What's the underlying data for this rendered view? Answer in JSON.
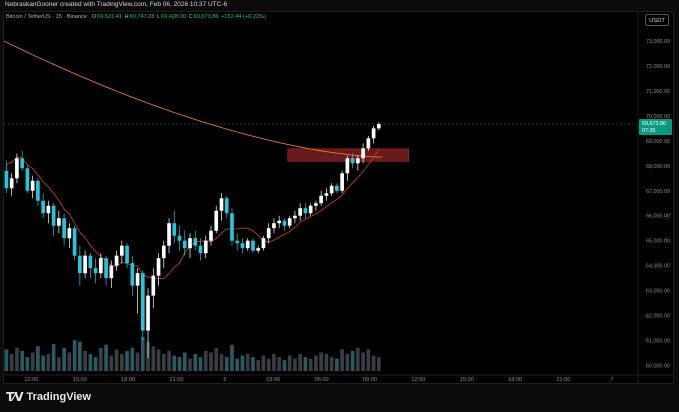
{
  "header": {
    "credit": "NebraskanGooner created with TradingView.com, Feb 06, 2026 10:37 UTC-6"
  },
  "legend": {
    "symbol": "Bitcoin / TetherUS · 15 · Binance",
    "o_label": "O",
    "o": "69,521.41",
    "h_label": "H",
    "h": "69,747.28",
    "l_label": "L",
    "l": "69,428.00",
    "c_label": "C",
    "c": "69,673.86",
    "change": "+152.44 (+0.22%)"
  },
  "quote_currency": "USDT",
  "price_tag": {
    "price": "69,673.86",
    "countdown": "07:35"
  },
  "footer": {
    "brand": "TradingView"
  },
  "colors": {
    "up": "#ffffff",
    "down": "#26c6da",
    "ma_slow": "#e07b2e",
    "ma_fast": "#c0392b",
    "zone": "#7a1f22",
    "background": "#000000"
  },
  "chart_data": {
    "type": "candlestick",
    "ylim": [
      59700,
      73600
    ],
    "y_ticks": [
      "73,000.00",
      "72,000.00",
      "71,000.00",
      "70,000.00",
      "69,000.00",
      "68,000.00",
      "67,000.00",
      "66,000.00",
      "65,000.00",
      "64,000.00",
      "63,000.00",
      "62,000.00",
      "61,000.00",
      "60,000.00"
    ],
    "y_tick_values": [
      73000,
      72000,
      71000,
      70000,
      69000,
      68000,
      67000,
      66000,
      65000,
      64000,
      63000,
      62000,
      61000,
      60000
    ],
    "x_ticks": [
      "12:00",
      "15:00",
      "18:00",
      "21:00",
      "6",
      "03:00",
      "06:00",
      "09:00",
      "12:00",
      "15:00",
      "18:00",
      "21:00",
      "7"
    ],
    "x_tick_hours": [
      12,
      15,
      18,
      21,
      24,
      27,
      30,
      33,
      36,
      39,
      42,
      45,
      48
    ],
    "x_range_hours": [
      10.3,
      49.5
    ],
    "candle_interval_hours": 0.25,
    "ohlc": [
      [
        67800,
        68200,
        66900,
        67100
      ],
      [
        67100,
        67700,
        66800,
        67500
      ],
      [
        67500,
        68500,
        67300,
        68300
      ],
      [
        68300,
        68600,
        67800,
        67900
      ],
      [
        67900,
        68000,
        66900,
        67000
      ],
      [
        67000,
        67600,
        66700,
        67400
      ],
      [
        67400,
        67500,
        66400,
        66600
      ],
      [
        66600,
        66900,
        65900,
        66100
      ],
      [
        66100,
        66600,
        65700,
        66400
      ],
      [
        66400,
        66500,
        65200,
        65600
      ],
      [
        65600,
        66200,
        65300,
        65900
      ],
      [
        65900,
        66100,
        64800,
        65100
      ],
      [
        65100,
        65700,
        64700,
        65500
      ],
      [
        65500,
        65600,
        64200,
        64400
      ],
      [
        64400,
        64800,
        63200,
        63700
      ],
      [
        63700,
        64600,
        63500,
        64400
      ],
      [
        64400,
        64500,
        63500,
        63900
      ],
      [
        63900,
        64300,
        63300,
        63700
      ],
      [
        63700,
        64500,
        63500,
        64300
      ],
      [
        64300,
        64400,
        63200,
        63500
      ],
      [
        63500,
        64200,
        63100,
        64000
      ],
      [
        64000,
        64600,
        63800,
        64400
      ],
      [
        64400,
        65000,
        64100,
        64800
      ],
      [
        64800,
        64900,
        63900,
        64100
      ],
      [
        64100,
        64400,
        62800,
        63200
      ],
      [
        63200,
        63900,
        62100,
        63700
      ],
      [
        63700,
        63800,
        61000,
        61400
      ],
      [
        61400,
        63100,
        60300,
        62800
      ],
      [
        62800,
        63900,
        62300,
        63600
      ],
      [
        63600,
        64500,
        63200,
        64300
      ],
      [
        64300,
        65000,
        63900,
        64800
      ],
      [
        64800,
        65900,
        64500,
        65700
      ],
      [
        65700,
        66200,
        64900,
        65200
      ],
      [
        65200,
        65600,
        64600,
        65000
      ],
      [
        65000,
        65400,
        64400,
        64700
      ],
      [
        64700,
        65300,
        64300,
        65100
      ],
      [
        65100,
        65400,
        64600,
        64800
      ],
      [
        64800,
        65100,
        64200,
        64500
      ],
      [
        64500,
        65200,
        64300,
        65000
      ],
      [
        65000,
        65600,
        64800,
        65400
      ],
      [
        65400,
        66400,
        65300,
        66200
      ],
      [
        66200,
        66900,
        65800,
        66700
      ],
      [
        66700,
        66800,
        65900,
        66100
      ],
      [
        66100,
        66300,
        64800,
        65000
      ],
      [
        65000,
        65300,
        64600,
        64900
      ],
      [
        64900,
        65100,
        64500,
        64700
      ],
      [
        64700,
        65100,
        64600,
        65000
      ],
      [
        65000,
        65100,
        64500,
        64600
      ],
      [
        64600,
        64800,
        64500,
        64700
      ],
      [
        64700,
        65200,
        64600,
        65100
      ],
      [
        65100,
        65700,
        64900,
        65500
      ],
      [
        65500,
        65900,
        65300,
        65700
      ],
      [
        65700,
        66000,
        65500,
        65800
      ],
      [
        65800,
        65900,
        65400,
        65600
      ],
      [
        65600,
        66000,
        65500,
        65900
      ],
      [
        65900,
        66200,
        65700,
        66000
      ],
      [
        66000,
        66500,
        65800,
        66300
      ],
      [
        66300,
        66500,
        65900,
        66100
      ],
      [
        66100,
        66500,
        66000,
        66400
      ],
      [
        66400,
        66600,
        66200,
        66500
      ],
      [
        66500,
        67000,
        66400,
        66800
      ],
      [
        66800,
        67100,
        66600,
        66900
      ],
      [
        66900,
        67300,
        66800,
        67200
      ],
      [
        67200,
        67300,
        66900,
        67000
      ],
      [
        67000,
        67800,
        66900,
        67700
      ],
      [
        67700,
        68400,
        67400,
        68300
      ],
      [
        68300,
        68500,
        67900,
        68100
      ],
      [
        68100,
        68400,
        67800,
        68300
      ],
      [
        68300,
        68900,
        68100,
        68700
      ],
      [
        68700,
        69200,
        68600,
        69100
      ],
      [
        69100,
        69600,
        68900,
        69500
      ],
      [
        69500,
        69747,
        69428,
        69674
      ]
    ],
    "volume": [
      28,
      22,
      30,
      26,
      18,
      24,
      32,
      20,
      22,
      35,
      18,
      30,
      24,
      40,
      38,
      26,
      22,
      18,
      30,
      34,
      20,
      28,
      22,
      26,
      30,
      24,
      44,
      38,
      32,
      28,
      22,
      26,
      20,
      18,
      24,
      16,
      22,
      18,
      26,
      24,
      30,
      22,
      18,
      34,
      16,
      20,
      22,
      18,
      14,
      20,
      16,
      22,
      18,
      14,
      20,
      16,
      22,
      18,
      16,
      20,
      24,
      22,
      18,
      16,
      28,
      22,
      26,
      30,
      24,
      28,
      20,
      18
    ],
    "ma_slow_start_end": [
      73000,
      68350
    ],
    "ma_fast_note": "trailing moving average",
    "zone": {
      "price_low": 68180,
      "price_high": 68680,
      "start_hour": 27.9,
      "end_hour": 35.4
    }
  }
}
